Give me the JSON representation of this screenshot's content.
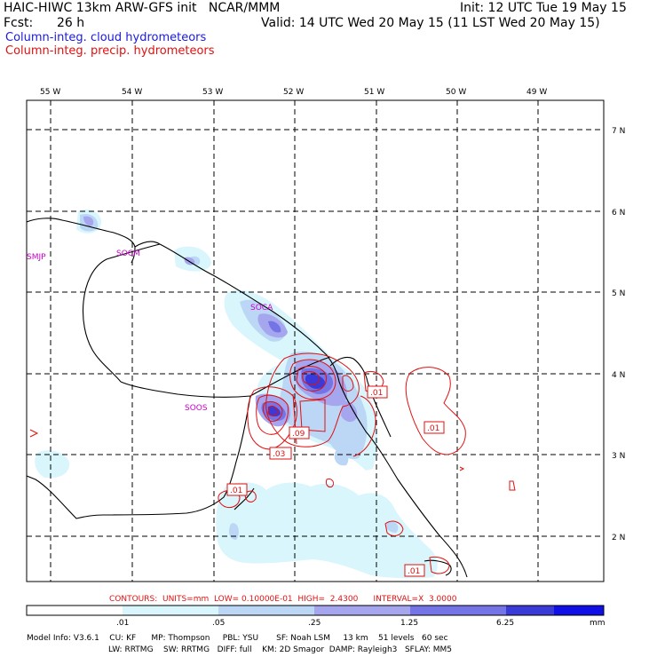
{
  "header": {
    "title_left": "HAIC-HIWC 13km ARW-GFS init   NCAR/MMM",
    "init": "Init: 12 UTC Tue 19 May 15",
    "fcst_label": "Fcst:",
    "fcst_value": "26 h",
    "valid": "Valid: 14 UTC Wed 20 May 15 (11 LST Wed 20 May 15)",
    "field_cloud": "Column-integ. cloud hydrometeors",
    "field_precip": "Column-integ. precip. hydrometeors"
  },
  "map": {
    "lon_labels": [
      "55 W",
      "54 W",
      "53 W",
      "52 W",
      "51 W",
      "50 W",
      "49 W"
    ],
    "lat_labels": [
      "7 N",
      "6 N",
      "5 N",
      "4 N",
      "3 N",
      "2 N"
    ],
    "stations": [
      "SMJP",
      "SOCM",
      "SOCA",
      "SOOS"
    ],
    "contour_labels": [
      ".01",
      ".09",
      ".03",
      ".01",
      ".01",
      ".01"
    ],
    "colors": {
      "cloud_light": "#d8f6fc",
      "cloud_mid1": "#bcd6f6",
      "cloud_mid2": "#a6a6ee",
      "cloud_mid3": "#7474e6",
      "cloud_dark": "#3a3ad8",
      "precip_contour": "#e01010",
      "coast": "#000000",
      "station": "#cc00cc"
    }
  },
  "contours_line": "CONTOURS:  UNITS=mm  LOW= 0.10000E-01  HIGH=  2.4300      INTERVAL=X  3.0000",
  "colorbar": {
    "ticks": [
      ".01",
      ".05",
      ".25",
      "1.25",
      "6.25"
    ],
    "unit": "mm",
    "colors": [
      "#ffffff",
      "#d8f6fc",
      "#bcd6f6",
      "#a6a6ee",
      "#7474e6",
      "#3a3ad8",
      "#1010e6"
    ]
  },
  "model_info": {
    "line1": "Model Info: V3.6.1    CU: KF      MP: Thompson     PBL: YSU       SF: Noah LSM     13 km    51 levels   60 sec",
    "line2": "LW: RRTMG    SW: RRTMG   DIFF: full    KM: 2D Smagor  DAMP: Rayleigh3   SFLAY: MM5"
  }
}
